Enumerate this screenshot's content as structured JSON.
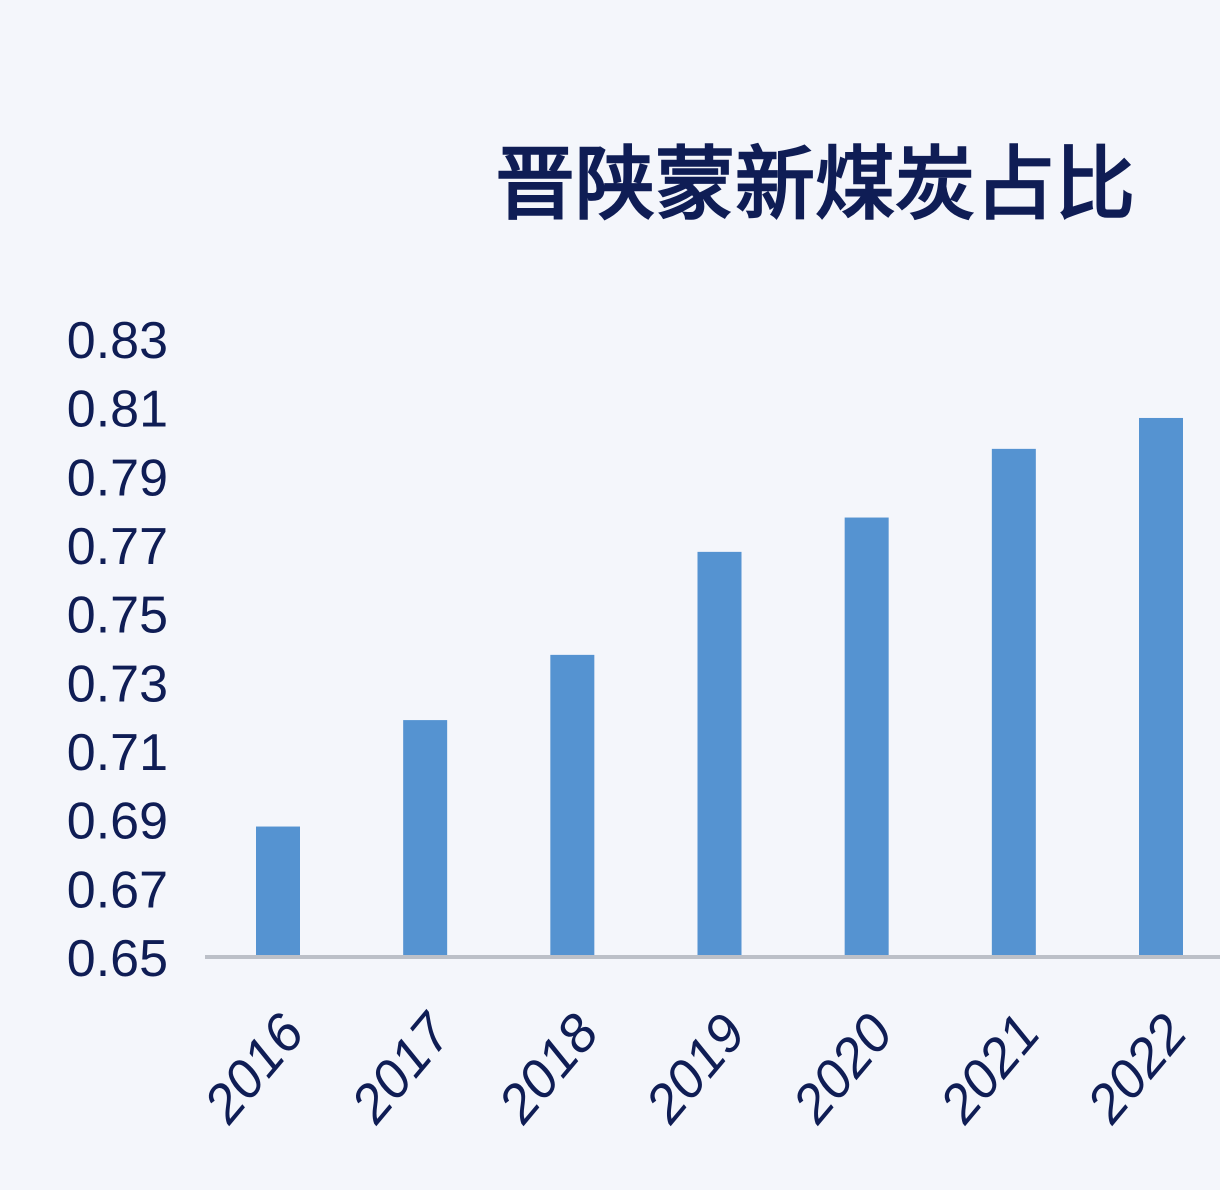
{
  "chart_data": {
    "type": "bar",
    "title": "晋陕蒙新煤炭占比",
    "xlabel": "",
    "ylabel": "",
    "categories": [
      "2016",
      "2017",
      "2018",
      "2019",
      "2020",
      "2021",
      "2022"
    ],
    "values": [
      0.688,
      0.719,
      0.738,
      0.768,
      0.778,
      0.798,
      0.807
    ],
    "ylim": [
      0.65,
      0.83
    ],
    "yticks": [
      "0.83",
      "0.81",
      "0.79",
      "0.77",
      "0.75",
      "0.73",
      "0.71",
      "0.69",
      "0.67",
      "0.65"
    ],
    "grid": false,
    "legend": "none"
  },
  "colors": {
    "background": "#f4f6fb",
    "bar": "#5593d1",
    "text": "#0f1d55",
    "axis": "#bcc0c8"
  }
}
